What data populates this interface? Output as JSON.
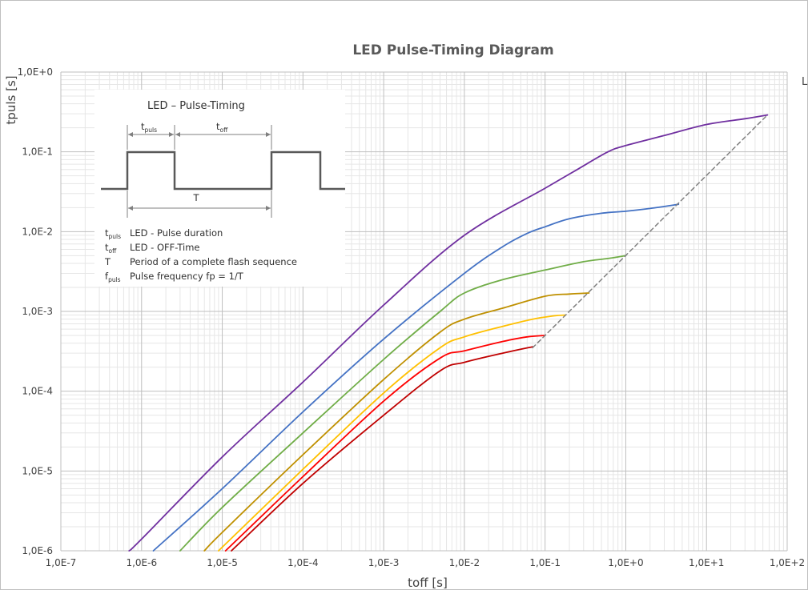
{
  "chart_data": {
    "type": "line",
    "title": "LED Pulse-Timing Diagram",
    "xlabel": "toff [s]",
    "ylabel": "tpuls [s]",
    "xscale": "log",
    "yscale": "log",
    "xlim": [
      1e-07,
      100
    ],
    "ylim": [
      1e-06,
      1
    ],
    "grid": true,
    "x_ticks": [
      "1,0E-7",
      "1,0E-6",
      "1,0E-5",
      "1,0E-4",
      "1,0E-3",
      "1,0E-2",
      "1,0E-1",
      "1,0E+0",
      "1,0E+1",
      "1,0E+2"
    ],
    "y_ticks": [
      "1,0E-6",
      "1,0E-5",
      "1,0E-4",
      "1,0E-3",
      "1,0E-2",
      "1,0E-1",
      "1,0E+0"
    ],
    "legend_stub": "L",
    "series": [
      {
        "color": "#7030a0",
        "points": [
          [
            7e-07,
            1e-06
          ],
          [
            1e-06,
            1.4e-06
          ],
          [
            1e-05,
            1.5e-05
          ],
          [
            0.0001,
            0.00013
          ],
          [
            0.001,
            0.0012
          ],
          [
            0.01,
            0.009
          ],
          [
            0.1,
            0.035
          ],
          [
            0.25,
            0.06
          ],
          [
            0.6,
            0.1
          ],
          [
            1,
            0.12
          ],
          [
            3,
            0.16
          ],
          [
            10,
            0.22
          ],
          [
            30,
            0.26
          ],
          [
            57,
            0.29
          ]
        ]
      },
      {
        "color": "#4472c4",
        "points": [
          [
            1.4e-06,
            1e-06
          ],
          [
            1e-05,
            6e-06
          ],
          [
            0.0001,
            5.5e-05
          ],
          [
            0.001,
            0.00045
          ],
          [
            0.01,
            0.003
          ],
          [
            0.03,
            0.0065
          ],
          [
            0.06,
            0.0095
          ],
          [
            0.1,
            0.0115
          ],
          [
            0.2,
            0.0145
          ],
          [
            0.5,
            0.017
          ],
          [
            1,
            0.018
          ],
          [
            2,
            0.0195
          ],
          [
            4.5,
            0.022
          ]
        ]
      },
      {
        "color": "#70ad47",
        "points": [
          [
            3e-06,
            1e-06
          ],
          [
            1e-05,
            3.5e-06
          ],
          [
            0.0001,
            3e-05
          ],
          [
            0.001,
            0.00025
          ],
          [
            0.005,
            0.001
          ],
          [
            0.01,
            0.0017
          ],
          [
            0.03,
            0.0025
          ],
          [
            0.1,
            0.0033
          ],
          [
            0.3,
            0.0042
          ],
          [
            0.6,
            0.0046
          ],
          [
            1,
            0.005
          ]
        ]
      },
      {
        "color": "#bf9000",
        "points": [
          [
            6e-06,
            1e-06
          ],
          [
            1e-05,
            1.7e-06
          ],
          [
            0.0001,
            1.6e-05
          ],
          [
            0.001,
            0.00014
          ],
          [
            0.005,
            0.00055
          ],
          [
            0.01,
            0.0008
          ],
          [
            0.03,
            0.0011
          ],
          [
            0.1,
            0.00155
          ],
          [
            0.2,
            0.00165
          ],
          [
            0.35,
            0.0017
          ]
        ]
      },
      {
        "color": "#ffc000",
        "points": [
          [
            9e-06,
            1e-06
          ],
          [
            0.0001,
            1.05e-05
          ],
          [
            0.001,
            9.5e-05
          ],
          [
            0.005,
            0.00035
          ],
          [
            0.01,
            0.00048
          ],
          [
            0.03,
            0.00065
          ],
          [
            0.07,
            0.0008
          ],
          [
            0.13,
            0.00088
          ],
          [
            0.18,
            0.0009
          ]
        ]
      },
      {
        "color": "#ff0000",
        "points": [
          [
            1.1e-05,
            1e-06
          ],
          [
            0.0001,
            8.5e-06
          ],
          [
            0.001,
            7.5e-05
          ],
          [
            0.005,
            0.00026
          ],
          [
            0.01,
            0.00032
          ],
          [
            0.03,
            0.00042
          ],
          [
            0.06,
            0.00048
          ],
          [
            0.1,
            0.0005
          ]
        ]
      },
      {
        "color": "#c00000",
        "points": [
          [
            1.3e-05,
            1e-06
          ],
          [
            0.0001,
            7e-06
          ],
          [
            0.001,
            5e-05
          ],
          [
            0.005,
            0.00018
          ],
          [
            0.01,
            0.00023
          ],
          [
            0.03,
            0.0003
          ],
          [
            0.07,
            0.00036
          ]
        ]
      },
      {
        "color": "#808080",
        "dashed": true,
        "points": [
          [
            0.07,
            0.00035
          ],
          [
            57,
            0.29
          ]
        ]
      }
    ]
  },
  "inset": {
    "title": "LED – Pulse-Timing",
    "waveform_labels": [
      {
        "main": "t",
        "sub": "puls"
      },
      {
        "main": "t",
        "sub": "off"
      },
      {
        "main": "T",
        "sub": ""
      }
    ],
    "legend": [
      {
        "symbol": "t",
        "sub": "puls",
        "text": "LED - Pulse duration"
      },
      {
        "symbol": "t",
        "sub": "off",
        "text": "LED - OFF-Time"
      },
      {
        "symbol": "T",
        "sub": "",
        "text": "Period of a complete flash sequence"
      },
      {
        "symbol": "f",
        "sub": "puls",
        "text": "Pulse frequency fp = 1/T"
      }
    ]
  }
}
